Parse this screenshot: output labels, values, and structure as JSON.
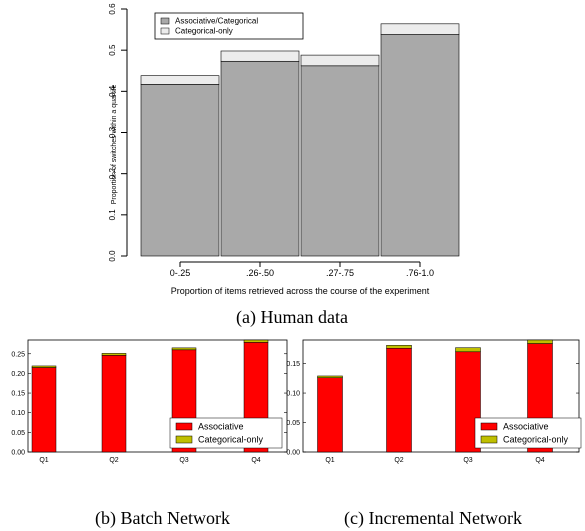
{
  "chart_data": [
    {
      "id": "human",
      "type": "bar",
      "stacked": true,
      "caption": "(a) Human data",
      "xlabel": "Proportion of items retrieved across the course of the experiment",
      "ylabel": "Proportion of switches within a quartile",
      "categories": [
        "0-.25",
        ".26-.50",
        ".27-.75",
        ".76-1.0"
      ],
      "ylim": [
        0,
        0.6
      ],
      "yticks": [
        "0.0",
        "0.1",
        "0.2",
        "0.3",
        "0.4",
        "0.5",
        "0.6"
      ],
      "grid": false,
      "legend_position": "top-left",
      "series": [
        {
          "name": "Associative/Categorical",
          "color": "#a9a9a9",
          "values": [
            0.417,
            0.473,
            0.462,
            0.538
          ]
        },
        {
          "name": "Categorical-only",
          "color": "#ececec",
          "values": [
            0.021,
            0.025,
            0.026,
            0.026
          ]
        }
      ]
    },
    {
      "id": "batch",
      "type": "bar",
      "stacked": true,
      "caption": "(b) Batch Network",
      "categories": [
        "Q1",
        "Q2",
        "Q3",
        "Q4"
      ],
      "ylim": [
        0,
        0.285
      ],
      "yticks": [
        "0.00",
        "0.05",
        "0.10",
        "0.15",
        "0.20",
        "0.25"
      ],
      "grid": false,
      "legend_position": "bottom-right",
      "series": [
        {
          "name": "Associative",
          "color": "#ff0000",
          "values": [
            0.215,
            0.246,
            0.26,
            0.279
          ]
        },
        {
          "name": "Categorical-only",
          "color": "#bfbf00",
          "values": [
            0.004,
            0.005,
            0.005,
            0.006
          ]
        }
      ]
    },
    {
      "id": "incremental",
      "type": "bar",
      "stacked": true,
      "caption": "(c) Incremental Network",
      "categories": [
        "Q1",
        "Q2",
        "Q3",
        "Q4"
      ],
      "ylim": [
        0,
        0.19
      ],
      "yticks": [
        "0.00",
        "0.05",
        "0.10",
        "0.15"
      ],
      "grid": false,
      "legend_position": "bottom-right",
      "series": [
        {
          "name": "Associative",
          "color": "#ff0000",
          "values": [
            0.126,
            0.176,
            0.17,
            0.184
          ]
        },
        {
          "name": "Categorical-only",
          "color": "#bfbf00",
          "values": [
            0.003,
            0.005,
            0.007,
            0.006
          ]
        }
      ]
    }
  ]
}
